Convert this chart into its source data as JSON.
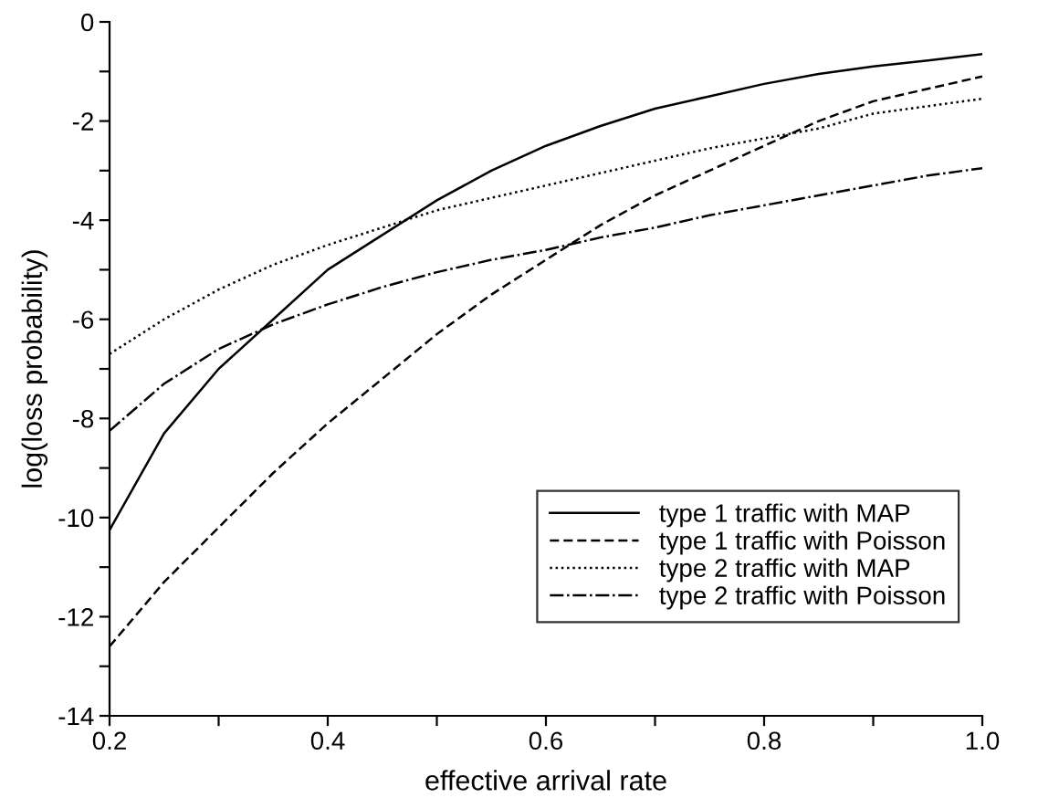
{
  "chart_data": {
    "type": "line",
    "xlabel": "effective arrival rate",
    "ylabel": "log(loss probability)",
    "x": [
      0.2,
      0.25,
      0.3,
      0.35,
      0.4,
      0.45,
      0.5,
      0.55,
      0.6,
      0.65,
      0.7,
      0.75,
      0.8,
      0.85,
      0.9,
      0.95,
      1.0
    ],
    "series": [
      {
        "name": "type 1 traffic with MAP",
        "color": "#000000",
        "line_style": "solid",
        "values": [
          -10.25,
          -8.3,
          -7.0,
          -6.0,
          -5.0,
          -4.3,
          -3.6,
          -3.0,
          -2.5,
          -2.1,
          -1.75,
          -1.5,
          -1.25,
          -1.05,
          -0.9,
          -0.78,
          -0.65
        ]
      },
      {
        "name": "type 1 traffic with Poisson",
        "color": "#000000",
        "line_style": "dashed",
        "values": [
          -12.6,
          -11.3,
          -10.2,
          -9.1,
          -8.1,
          -7.2,
          -6.3,
          -5.5,
          -4.8,
          -4.1,
          -3.5,
          -3.0,
          -2.5,
          -2.0,
          -1.6,
          -1.35,
          -1.1
        ]
      },
      {
        "name": "type 2 traffic with MAP",
        "color": "#000000",
        "line_style": "dotted",
        "values": [
          -6.7,
          -6.0,
          -5.4,
          -4.9,
          -4.5,
          -4.15,
          -3.8,
          -3.55,
          -3.3,
          -3.05,
          -2.8,
          -2.55,
          -2.35,
          -2.15,
          -1.85,
          -1.7,
          -1.55
        ]
      },
      {
        "name": "type 2 traffic with Poisson",
        "color": "#000000",
        "line_style": "dashdot",
        "values": [
          -8.25,
          -7.3,
          -6.6,
          -6.1,
          -5.7,
          -5.35,
          -5.05,
          -4.8,
          -4.6,
          -4.35,
          -4.15,
          -3.9,
          -3.7,
          -3.5,
          -3.3,
          -3.1,
          -2.95
        ]
      }
    ],
    "xlim": [
      0.2,
      1.0
    ],
    "ylim": [
      -14,
      0
    ],
    "xticks": [
      0.2,
      {
        "value": 0.3,
        "label": null
      },
      0.4,
      {
        "value": 0.5,
        "label": null
      },
      0.6,
      {
        "value": 0.7,
        "label": null
      },
      0.8,
      {
        "value": 0.9,
        "label": null
      },
      {
        "value": 1.0,
        "label": "1.0"
      }
    ],
    "yticks": [
      -14,
      {
        "value": -13,
        "label": null
      },
      -12,
      {
        "value": -11,
        "label": null
      },
      -10,
      {
        "value": -9,
        "label": null
      },
      -8,
      {
        "value": -7,
        "label": null
      },
      -6,
      {
        "value": -5,
        "label": null
      },
      -4,
      {
        "value": -3,
        "label": null
      },
      -2,
      {
        "value": -1,
        "label": null
      },
      0
    ],
    "grid": false,
    "legend": "bottom right",
    "marker": "none"
  }
}
